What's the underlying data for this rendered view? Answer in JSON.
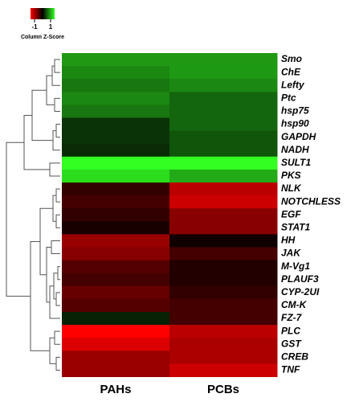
{
  "chart_data": {
    "type": "heatmap",
    "categories": [
      "Smo",
      "ChE",
      "Lefty",
      "Ptc",
      "hsp75",
      "hsp90",
      "GAPDH",
      "NADH",
      "SULT1",
      "PKS",
      "NLK",
      "NOTCHLESS",
      "EGF",
      "STAT1",
      "HH",
      "JAK",
      "M-Vg1",
      "PLAUF3",
      "CYP-2UI",
      "CM-K",
      "FZ-7",
      "PLC",
      "GST",
      "CREB",
      "TNF"
    ],
    "series": [
      {
        "name": "PAHs",
        "values": [
          0.9,
          0.8,
          0.7,
          0.8,
          0.7,
          0.3,
          0.3,
          0.25,
          1.5,
          1.3,
          -0.3,
          -0.4,
          -0.3,
          -0.15,
          -0.9,
          -0.8,
          -0.5,
          -0.4,
          -0.6,
          -0.5,
          0.2,
          -1.5,
          -1.3,
          -0.9,
          -0.9
        ]
      },
      {
        "name": "PCBs",
        "values": [
          0.9,
          0.9,
          0.8,
          0.6,
          0.6,
          0.6,
          0.5,
          0.5,
          1.5,
          1.0,
          -1.1,
          -1.2,
          -0.8,
          -0.8,
          -0.1,
          -0.4,
          -0.2,
          -0.2,
          -0.3,
          -0.4,
          -0.4,
          -1.1,
          -1.0,
          -1.0,
          -1.2
        ]
      }
    ],
    "colorbar": {
      "label": "Column Z-Score",
      "lim": [
        -1.5,
        1.5
      ],
      "ticks": [
        -1,
        1
      ]
    },
    "colors": {
      "low": "#ff0000",
      "mid": "#000000",
      "high": "#33ff22"
    }
  }
}
